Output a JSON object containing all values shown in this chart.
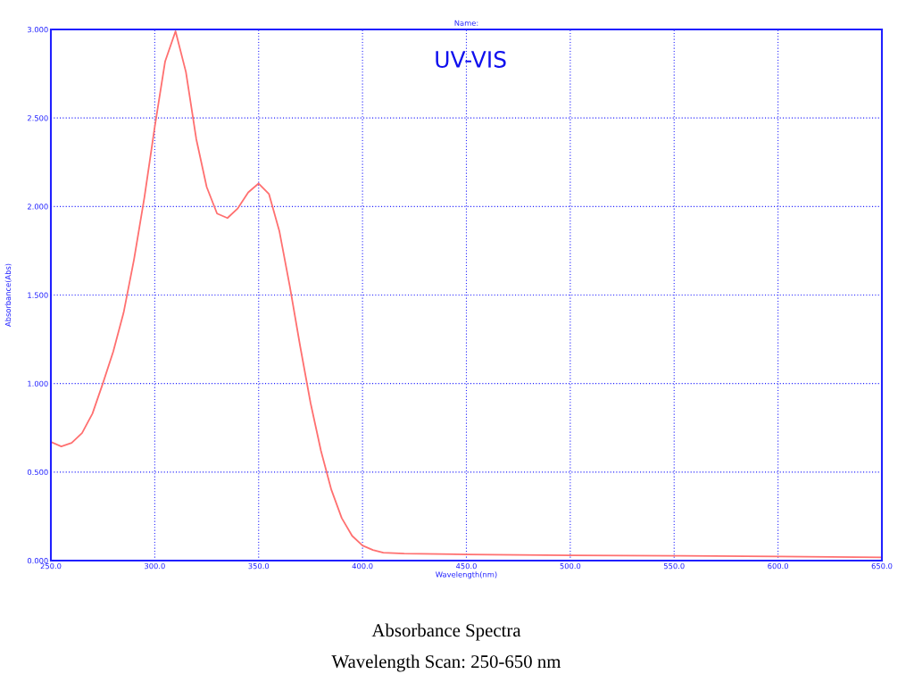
{
  "chart_data": {
    "type": "line",
    "title": "Name:",
    "xlabel": "Wavelength(nm)",
    "ylabel": "Absorbance(Abs)",
    "annotations": [
      "UV-VIS",
      "Absorbance Spectra",
      "Wavelength Scan: 250-650 nm"
    ],
    "x": [
      250,
      255,
      260,
      265,
      270,
      275,
      280,
      285,
      290,
      295,
      300,
      305,
      310,
      315,
      320,
      325,
      330,
      335,
      340,
      345,
      350,
      355,
      360,
      365,
      370,
      375,
      380,
      385,
      390,
      395,
      400,
      405,
      410,
      420,
      450,
      500,
      550,
      600,
      650
    ],
    "series": [
      {
        "color": "#ff7070",
        "values": [
          0.67,
          0.645,
          0.665,
          0.72,
          0.83,
          1.0,
          1.18,
          1.4,
          1.7,
          2.05,
          2.45,
          2.82,
          2.99,
          2.76,
          2.38,
          2.11,
          1.96,
          1.935,
          1.99,
          2.08,
          2.13,
          2.07,
          1.86,
          1.55,
          1.21,
          0.89,
          0.62,
          0.4,
          0.24,
          0.14,
          0.085,
          0.06,
          0.045,
          0.04,
          0.035,
          0.03,
          0.027,
          0.023,
          0.018
        ]
      }
    ],
    "xlim": [
      250,
      650
    ],
    "ylim": [
      0,
      3
    ],
    "xticks": [
      {
        "value": 250,
        "label": "250.0"
      },
      {
        "value": 300,
        "label": "300.0"
      },
      {
        "value": 350,
        "label": "350.0"
      },
      {
        "value": 400,
        "label": "400.0"
      },
      {
        "value": 450,
        "label": "450.0"
      },
      {
        "value": 500,
        "label": "500.0"
      },
      {
        "value": 550,
        "label": "550.0"
      },
      {
        "value": 600,
        "label": "600.0"
      },
      {
        "value": 650,
        "label": "650.0"
      }
    ],
    "yticks": [
      {
        "value": 0,
        "label": "0.000"
      },
      {
        "value": 0.5,
        "label": "0.500"
      },
      {
        "value": 1,
        "label": "1.000"
      },
      {
        "value": 1.5,
        "label": "1.500"
      },
      {
        "value": 2,
        "label": "2.000"
      },
      {
        "value": 2.5,
        "label": "2.500"
      },
      {
        "value": 3,
        "label": "3.000"
      }
    ],
    "grid": true,
    "legend": false,
    "marker": "none",
    "line_style": "solid"
  }
}
